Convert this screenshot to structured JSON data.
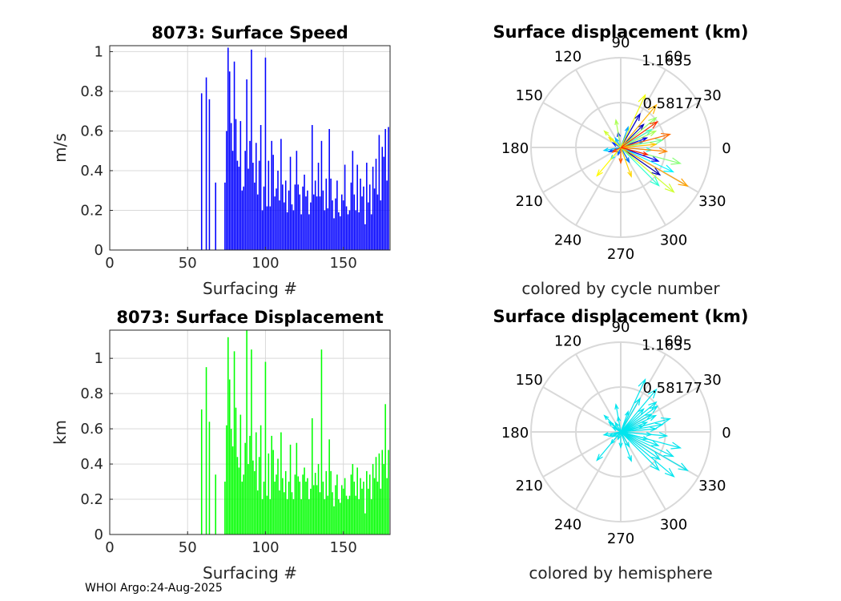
{
  "credit": "WHOI Argo:24-Aug-2025",
  "colors": {
    "speed_bars": "#0000ff",
    "displacement_bars": "#00ff00",
    "hemisphere_arrows": "#00e5ee",
    "grid": "#d9d9d9",
    "axis": "#262626"
  },
  "chart_data": [
    {
      "id": "speed",
      "type": "bar",
      "title": "8073: Surface Speed",
      "xlabel": "Surfacing #",
      "ylabel": "m/s",
      "xlim": [
        0,
        180
      ],
      "ylim": [
        0,
        1.03
      ],
      "xticks": [
        0,
        50,
        100,
        150
      ],
      "yticks": [
        0,
        0.2,
        0.4,
        0.6,
        0.8,
        1
      ],
      "x": [
        59,
        62,
        64,
        68,
        74,
        75,
        76,
        77,
        78,
        79,
        80,
        81,
        82,
        83,
        84,
        85,
        86,
        87,
        88,
        89,
        90,
        91,
        92,
        93,
        94,
        95,
        96,
        97,
        98,
        99,
        100,
        101,
        102,
        103,
        104,
        105,
        106,
        107,
        108,
        109,
        110,
        111,
        112,
        113,
        114,
        115,
        116,
        117,
        118,
        119,
        120,
        121,
        122,
        123,
        124,
        125,
        126,
        127,
        128,
        129,
        130,
        131,
        132,
        133,
        134,
        135,
        136,
        137,
        138,
        139,
        140,
        141,
        142,
        143,
        144,
        145,
        146,
        147,
        148,
        149,
        150,
        151,
        152,
        153,
        154,
        155,
        156,
        157,
        158,
        159,
        160,
        161,
        162,
        163,
        164,
        165,
        166,
        167,
        168,
        169,
        170,
        171,
        172,
        173,
        174,
        175,
        176,
        177,
        178,
        179
      ],
      "values": [
        0.79,
        0.87,
        0.76,
        0.34,
        0.34,
        0.6,
        1.02,
        0.9,
        0.64,
        0.5,
        0.95,
        0.66,
        0.45,
        0.42,
        0.65,
        0.3,
        0.32,
        0.5,
        0.86,
        0.41,
        0.55,
        1.01,
        0.44,
        0.34,
        0.54,
        0.28,
        0.45,
        0.63,
        0.2,
        0.32,
        0.97,
        0.22,
        0.45,
        0.22,
        0.55,
        0.48,
        0.27,
        0.31,
        0.4,
        0.25,
        0.56,
        0.33,
        0.24,
        0.35,
        0.19,
        0.3,
        0.47,
        0.23,
        0.2,
        0.33,
        0.5,
        0.33,
        0.28,
        0.18,
        0.32,
        0.38,
        0.27,
        0.3,
        0.18,
        0.24,
        0.63,
        0.28,
        0.35,
        0.27,
        0.44,
        0.27,
        0.55,
        0.3,
        0.2,
        0.36,
        0.21,
        0.61,
        0.36,
        0.25,
        0.16,
        0.26,
        0.35,
        0.19,
        0.17,
        0.28,
        0.25,
        0.43,
        0.22,
        0.18,
        0.2,
        0.34,
        0.5,
        0.28,
        0.2,
        0.43,
        0.19,
        0.36,
        0.27,
        0.32,
        0.13,
        0.44,
        0.24,
        0.33,
        0.18,
        0.42,
        0.31,
        0.46,
        0.28,
        0.58,
        0.25,
        0.52,
        0.47,
        0.61,
        0.35,
        0.62
      ]
    },
    {
      "id": "displacement",
      "type": "bar",
      "title": "8073: Surface Displacement",
      "xlabel": "Surfacing #",
      "ylabel": "km",
      "xlim": [
        0,
        180
      ],
      "ylim": [
        0,
        1.16
      ],
      "xticks": [
        0,
        50,
        100,
        150
      ],
      "yticks": [
        0,
        0.2,
        0.4,
        0.6,
        0.8,
        1
      ],
      "x": [
        59,
        62,
        64,
        68,
        74,
        75,
        76,
        77,
        78,
        79,
        80,
        81,
        82,
        83,
        84,
        85,
        86,
        87,
        88,
        89,
        90,
        91,
        92,
        93,
        94,
        95,
        96,
        97,
        98,
        99,
        100,
        101,
        102,
        103,
        104,
        105,
        106,
        107,
        108,
        109,
        110,
        111,
        112,
        113,
        114,
        115,
        116,
        117,
        118,
        119,
        120,
        121,
        122,
        123,
        124,
        125,
        126,
        127,
        128,
        129,
        130,
        131,
        132,
        133,
        134,
        135,
        136,
        137,
        138,
        139,
        140,
        141,
        142,
        143,
        144,
        145,
        146,
        147,
        148,
        149,
        150,
        151,
        152,
        153,
        154,
        155,
        156,
        157,
        158,
        159,
        160,
        161,
        162,
        163,
        164,
        165,
        166,
        167,
        168,
        169,
        170,
        171,
        172,
        173,
        174,
        175,
        176,
        177,
        178,
        179
      ],
      "values": [
        0.71,
        0.95,
        0.64,
        0.34,
        0.3,
        0.62,
        1.12,
        0.88,
        0.6,
        0.5,
        1.04,
        0.72,
        0.44,
        0.38,
        0.68,
        0.3,
        0.34,
        0.52,
        1.16,
        0.4,
        0.56,
        1.05,
        0.42,
        0.36,
        0.58,
        0.25,
        0.44,
        0.62,
        0.2,
        0.3,
        0.98,
        0.22,
        0.46,
        0.2,
        0.56,
        0.48,
        0.3,
        0.34,
        0.43,
        0.25,
        0.58,
        0.32,
        0.24,
        0.36,
        0.2,
        0.3,
        0.51,
        0.24,
        0.2,
        0.34,
        0.52,
        0.33,
        0.3,
        0.2,
        0.34,
        0.38,
        0.3,
        0.32,
        0.2,
        0.26,
        0.66,
        0.28,
        0.35,
        0.28,
        0.4,
        0.24,
        1.05,
        0.3,
        0.2,
        0.36,
        0.22,
        0.54,
        0.36,
        0.24,
        0.16,
        0.28,
        0.34,
        0.2,
        0.18,
        0.28,
        0.26,
        0.32,
        0.22,
        0.2,
        0.22,
        0.34,
        0.4,
        0.3,
        0.22,
        0.38,
        0.2,
        0.32,
        0.26,
        0.3,
        0.12,
        0.36,
        0.26,
        0.34,
        0.2,
        0.4,
        0.32,
        0.44,
        0.3,
        0.46,
        0.26,
        0.48,
        0.4,
        0.74,
        0.32,
        0.48
      ]
    },
    {
      "id": "polar-cycle",
      "type": "polar-compass",
      "title": "Surface displacement (km)",
      "caption": "colored by cycle number",
      "rmax": 1.1635,
      "ring_labels": [
        "1.1635",
        "0.58177"
      ],
      "angle_labels": [
        "0",
        "30",
        "60",
        "90",
        "120",
        "150",
        "180",
        "210",
        "240",
        "270",
        "300",
        "330"
      ],
      "colormap": [
        "#00008f",
        "#0000ff",
        "#0080ff",
        "#00ffff",
        "#80ff80",
        "#ffff00",
        "#ff8000",
        "#ff0000"
      ],
      "arrows": [
        {
          "angle": 45,
          "r": 0.42,
          "c": 0.05
        },
        {
          "angle": 60,
          "r": 0.5,
          "c": 0.08
        },
        {
          "angle": 20,
          "r": 0.36,
          "c": 0.1
        },
        {
          "angle": 340,
          "r": 0.52,
          "c": 0.12
        },
        {
          "angle": 325,
          "r": 0.62,
          "c": 0.04
        },
        {
          "angle": 100,
          "r": 0.2,
          "c": 0.18
        },
        {
          "angle": 150,
          "r": 0.12,
          "c": 0.2
        },
        {
          "angle": 200,
          "r": 0.16,
          "c": 0.22
        },
        {
          "angle": 250,
          "r": 0.1,
          "c": 0.25
        },
        {
          "angle": 300,
          "r": 0.22,
          "c": 0.27
        },
        {
          "angle": 15,
          "r": 0.3,
          "c": 0.3
        },
        {
          "angle": 70,
          "r": 0.28,
          "c": 0.33
        },
        {
          "angle": 120,
          "r": 0.14,
          "c": 0.35
        },
        {
          "angle": 190,
          "r": 0.22,
          "c": 0.38
        },
        {
          "angle": 230,
          "r": 0.2,
          "c": 0.4
        },
        {
          "angle": 355,
          "r": 0.4,
          "c": 0.45
        },
        {
          "angle": 335,
          "r": 0.75,
          "c": 0.42
        },
        {
          "angle": 315,
          "r": 0.7,
          "c": 0.48
        },
        {
          "angle": 30,
          "r": 0.46,
          "c": 0.5
        },
        {
          "angle": 10,
          "r": 0.55,
          "c": 0.55
        },
        {
          "angle": 345,
          "r": 0.8,
          "c": 0.58
        },
        {
          "angle": 40,
          "r": 0.6,
          "c": 0.6
        },
        {
          "angle": 25,
          "r": 0.5,
          "c": 0.62
        },
        {
          "angle": 320,
          "r": 0.9,
          "c": 0.66
        },
        {
          "angle": 65,
          "r": 0.75,
          "c": 0.7
        },
        {
          "angle": 230,
          "r": 0.48,
          "c": 0.72
        },
        {
          "angle": 140,
          "r": 0.2,
          "c": 0.74
        },
        {
          "angle": 290,
          "r": 0.4,
          "c": 0.76
        },
        {
          "angle": 5,
          "r": 0.46,
          "c": 0.78
        },
        {
          "angle": 50,
          "r": 0.72,
          "c": 0.8
        },
        {
          "angle": 330,
          "r": 1.0,
          "c": 0.82
        },
        {
          "angle": 355,
          "r": 0.6,
          "c": 0.85
        },
        {
          "angle": 15,
          "r": 0.66,
          "c": 0.88
        },
        {
          "angle": 270,
          "r": 0.2,
          "c": 0.9
        },
        {
          "angle": 210,
          "r": 0.12,
          "c": 0.92
        },
        {
          "angle": 35,
          "r": 0.58,
          "c": 0.95
        },
        {
          "angle": 345,
          "r": 0.36,
          "c": 0.97
        },
        {
          "angle": 100,
          "r": 0.36,
          "c": 0.62
        },
        {
          "angle": 135,
          "r": 0.3,
          "c": 0.66
        }
      ]
    },
    {
      "id": "polar-hemisphere",
      "type": "polar-compass",
      "title": "Surface displacement (km)",
      "caption": "colored by hemisphere",
      "rmax": 1.1635,
      "ring_labels": [
        "1.1635",
        "0.58177"
      ],
      "angle_labels": [
        "0",
        "30",
        "60",
        "90",
        "120",
        "150",
        "180",
        "210",
        "240",
        "270",
        "300",
        "330"
      ],
      "arrows": [
        {
          "angle": 45,
          "r": 0.42
        },
        {
          "angle": 60,
          "r": 0.5
        },
        {
          "angle": 20,
          "r": 0.36
        },
        {
          "angle": 340,
          "r": 0.52
        },
        {
          "angle": 325,
          "r": 0.62
        },
        {
          "angle": 100,
          "r": 0.2
        },
        {
          "angle": 150,
          "r": 0.12
        },
        {
          "angle": 200,
          "r": 0.16
        },
        {
          "angle": 250,
          "r": 0.1
        },
        {
          "angle": 300,
          "r": 0.22
        },
        {
          "angle": 15,
          "r": 0.3
        },
        {
          "angle": 70,
          "r": 0.28
        },
        {
          "angle": 120,
          "r": 0.14
        },
        {
          "angle": 190,
          "r": 0.22
        },
        {
          "angle": 230,
          "r": 0.2
        },
        {
          "angle": 355,
          "r": 0.4
        },
        {
          "angle": 335,
          "r": 0.75
        },
        {
          "angle": 315,
          "r": 0.7
        },
        {
          "angle": 30,
          "r": 0.46
        },
        {
          "angle": 10,
          "r": 0.55
        },
        {
          "angle": 345,
          "r": 0.8
        },
        {
          "angle": 40,
          "r": 0.6
        },
        {
          "angle": 25,
          "r": 0.5
        },
        {
          "angle": 320,
          "r": 0.9
        },
        {
          "angle": 65,
          "r": 0.75
        },
        {
          "angle": 230,
          "r": 0.48
        },
        {
          "angle": 140,
          "r": 0.2
        },
        {
          "angle": 290,
          "r": 0.4
        },
        {
          "angle": 5,
          "r": 0.46
        },
        {
          "angle": 50,
          "r": 0.72
        },
        {
          "angle": 330,
          "r": 1.0
        },
        {
          "angle": 355,
          "r": 0.6
        },
        {
          "angle": 15,
          "r": 0.66
        },
        {
          "angle": 270,
          "r": 0.2
        },
        {
          "angle": 210,
          "r": 0.12
        },
        {
          "angle": 35,
          "r": 0.58
        },
        {
          "angle": 345,
          "r": 0.36
        },
        {
          "angle": 100,
          "r": 0.36
        },
        {
          "angle": 135,
          "r": 0.3
        }
      ]
    }
  ]
}
